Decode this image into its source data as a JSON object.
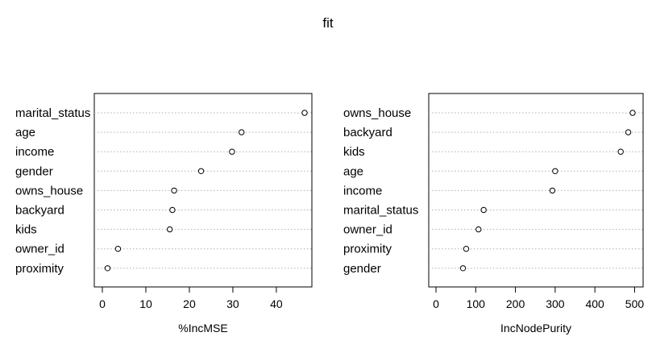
{
  "chart_data": {
    "type": "scatter",
    "title": "fit",
    "panels": [
      {
        "xlabel": "%IncMSE",
        "xticks": [
          0,
          10,
          20,
          30,
          40
        ],
        "xlim": [
          0,
          46.5
        ],
        "categories": [
          "marital_status",
          "age",
          "income",
          "gender",
          "owns_house",
          "backyard",
          "kids",
          "owner_id",
          "proximity"
        ],
        "values": [
          46.5,
          32.0,
          29.8,
          22.7,
          16.5,
          16.1,
          15.5,
          3.6,
          1.2
        ],
        "grid": "dotted-horizontal"
      },
      {
        "xlabel": "IncNodePurity",
        "xticks": [
          0,
          100,
          200,
          300,
          400,
          500
        ],
        "xlim": [
          0,
          495
        ],
        "categories": [
          "owns_house",
          "backyard",
          "kids",
          "age",
          "income",
          "marital_status",
          "owner_id",
          "proximity",
          "gender"
        ],
        "values": [
          495,
          484,
          465,
          300,
          293,
          120,
          107,
          76,
          68
        ],
        "grid": "dotted-horizontal"
      }
    ]
  }
}
